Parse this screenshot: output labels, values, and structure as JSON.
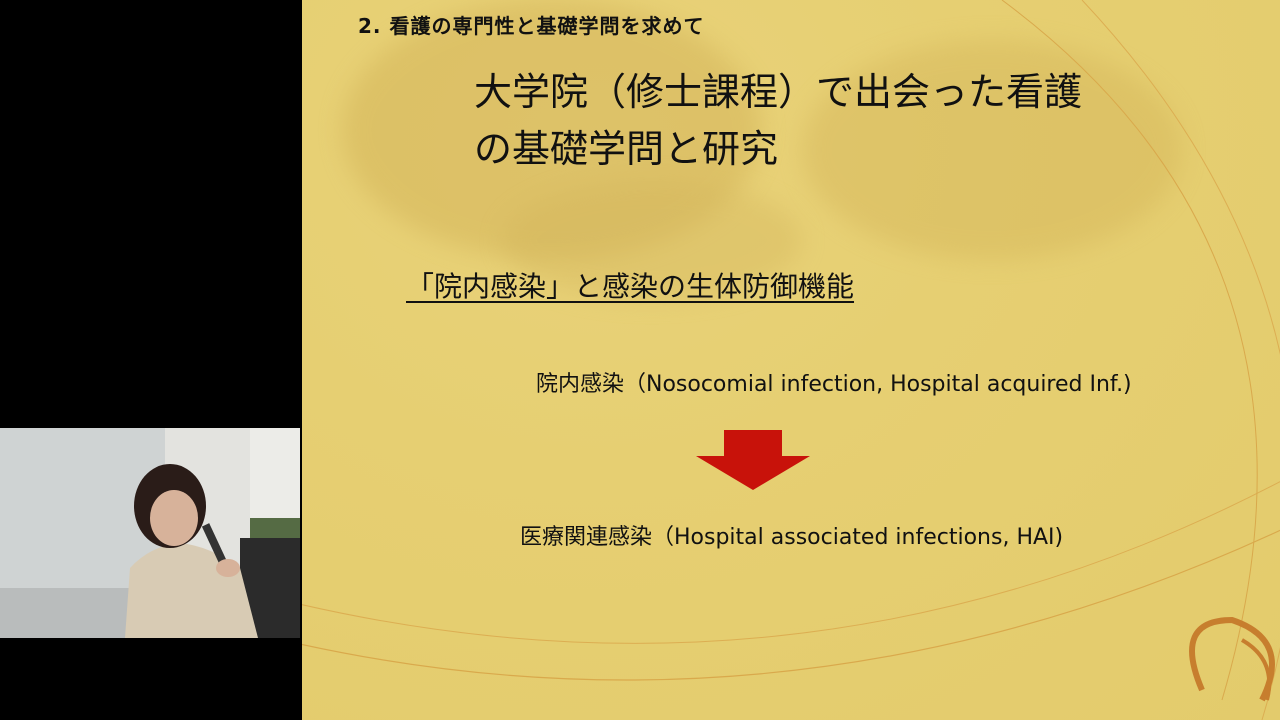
{
  "slide": {
    "section_heading": "2. 看護の専門性と基礎学問を求めて",
    "title_line1": "大学院（修士課程）で出会った看護",
    "title_line2": "の基礎学問と研究",
    "subtitle": "「院内感染」と感染の生体防御機能",
    "term_old": "院内感染（Nosocomial  infection, Hospital  acquired  Inf.)",
    "term_new": "医療関連感染（Hospital associated  infections,  HAI)"
  },
  "colors": {
    "slide_bg": "#e6cf72",
    "arrow": "#c8120a",
    "text": "#111111"
  },
  "icons": {
    "arrow": "down-arrow-icon",
    "deco": "swirl-decoration"
  }
}
